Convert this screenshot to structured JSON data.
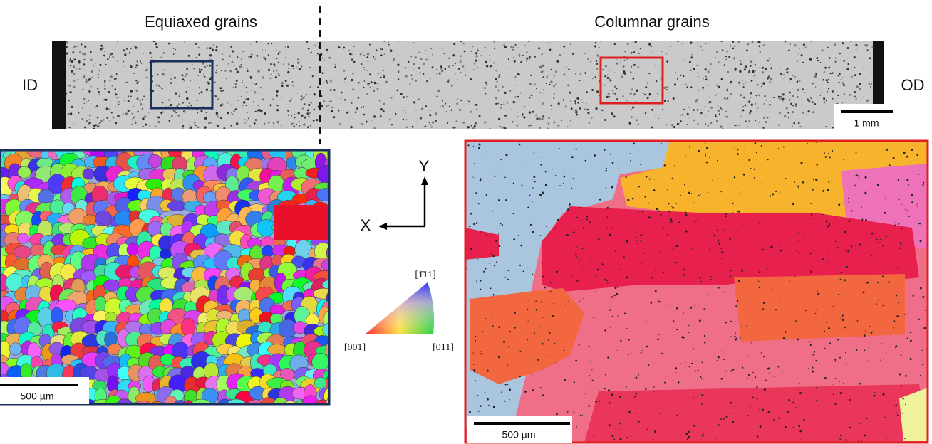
{
  "labels": {
    "left_region": "Equiaxed grains",
    "right_region": "Columnar grains",
    "inner": "ID",
    "outer": "OD"
  },
  "scale_bars": {
    "top": "1 mm",
    "left_map": "500 µm",
    "right_map": "500 µm"
  },
  "axes": {
    "y": "Y",
    "x": "X"
  },
  "ipf_key": {
    "top": "[1̄11]",
    "left": "[001]",
    "right": "[011]"
  }
}
